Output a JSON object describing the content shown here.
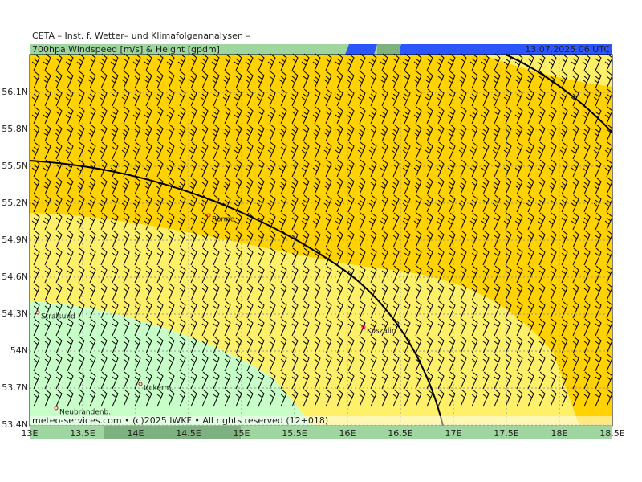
{
  "header": {
    "institute": "CETA – Inst. f. Wetter– und Klimafolgenanalysen –",
    "title": "700hpa Windspeed [m/s] & Height [gpdm]",
    "valid": "13.07.2025 06 UTC"
  },
  "map": {
    "lat_ticks": [
      {
        "value": 53.4,
        "label": "53.4N"
      },
      {
        "value": 53.7,
        "label": "53.7N"
      },
      {
        "value": 54,
        "label": "54N"
      },
      {
        "value": 54.3,
        "label": "54.3N"
      },
      {
        "value": 54.6,
        "label": "54.6N"
      },
      {
        "value": 54.9,
        "label": "54.9N"
      },
      {
        "value": 55.2,
        "label": "55.2N"
      },
      {
        "value": 55.5,
        "label": "55.5N"
      },
      {
        "value": 55.8,
        "label": "55.8N"
      },
      {
        "value": 56.1,
        "label": "56.1N"
      }
    ],
    "lon_ticks": [
      {
        "value": 13,
        "label": "13E"
      },
      {
        "value": 13.5,
        "label": "13.5E"
      },
      {
        "value": 14,
        "label": "14E"
      },
      {
        "value": 14.5,
        "label": "14.5E"
      },
      {
        "value": 15,
        "label": "15E"
      },
      {
        "value": 15.5,
        "label": "15.5E"
      },
      {
        "value": 16,
        "label": "16E"
      },
      {
        "value": 16.5,
        "label": "16.5E"
      },
      {
        "value": 17,
        "label": "17E"
      },
      {
        "value": 17.5,
        "label": "17.5E"
      },
      {
        "value": 18,
        "label": "18E"
      },
      {
        "value": 18.5,
        "label": "18.5E"
      }
    ],
    "cities": [
      "Ronne",
      "Stralsund",
      "Koszalin",
      "Uckerm.",
      "Neubrandenb."
    ]
  },
  "footer": "meteo-services.com • (c)2025 IWKF • All rights reserved (12+018)"
}
